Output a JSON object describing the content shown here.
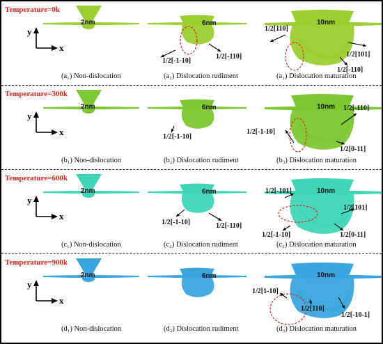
{
  "rows": [
    {
      "temperature": "Temperature=0k",
      "color": "#9bcf2f",
      "sizes": [
        "2nm",
        "6nm",
        "10nm"
      ],
      "captions": [
        "(a₁) Non-dislocation",
        "(a₂) Dislocation rudiment",
        "(a₃) Dislocation maturation"
      ],
      "burgers_b": [
        "1/2[-1-10]",
        "1/2[-110]"
      ],
      "burgers_c": [
        "1/2[110]",
        "1/2[101]",
        "1/2[-110]"
      ]
    },
    {
      "temperature": "Temperature=300k",
      "color": "#7dc832",
      "sizes": [
        "2nm",
        "6nm",
        "10nm"
      ],
      "captions": [
        "(b₁) Non-dislocation",
        "(b₂) Dislocation rudiment",
        "(b₃) Dislocation maturation"
      ],
      "burgers_b": [
        "1/2[-1-10]"
      ],
      "burgers_c": [
        "1/2[-110]",
        "1/2[-1-10]",
        "1/2[0-11]"
      ]
    },
    {
      "temperature": "Temperature=600k",
      "color": "#3fd6b8",
      "sizes": [
        "2nm",
        "6nm",
        "10nm"
      ],
      "captions": [
        "(c₁) Non-dislocation",
        "(c₂) Dislocation rudiment",
        "(c₃) Dislocation maturation"
      ],
      "burgers_b": [
        "1/2[-1-10]",
        "1/2[-110]"
      ],
      "burgers_c": [
        "1/2[-101]",
        "1/2[101]",
        "1/2[-1-10]",
        "1/2[0-11]"
      ]
    },
    {
      "temperature": "Temperature=900k",
      "color": "#3aa6df",
      "sizes": [
        "2nm",
        "6nm",
        "10nm"
      ],
      "captions": [
        "(d₁) Non-dislocation",
        "(d₂) Dislocation rudiment",
        "(d₃) Dislocation maturation"
      ],
      "burgers_b": [],
      "burgers_c": [
        "1/2[1-10]",
        "1/2[110]",
        "1/2[-10-1]"
      ]
    }
  ],
  "axes": {
    "x": "x",
    "y": "y"
  }
}
